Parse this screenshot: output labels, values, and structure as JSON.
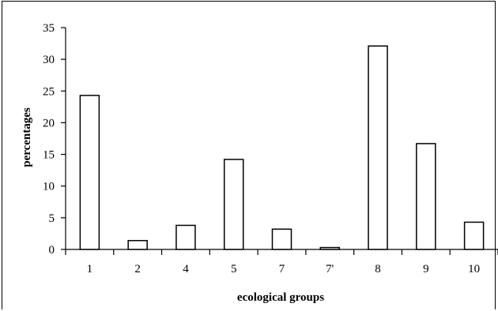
{
  "chart_data": {
    "type": "bar",
    "categories": [
      "1",
      "2",
      "4",
      "5",
      "7",
      "7'",
      "8",
      "9",
      "10"
    ],
    "values": [
      24.3,
      1.4,
      3.8,
      14.2,
      3.2,
      0.3,
      32.1,
      16.7,
      4.3
    ],
    "xlabel": "ecological groups",
    "ylabel": "percentages",
    "ylim": [
      0,
      35
    ],
    "yticks": [
      0,
      5,
      10,
      15,
      20,
      25,
      30,
      35
    ],
    "grid": false,
    "legend": "none",
    "bar_fill": "#ffffff",
    "bar_stroke": "#000000"
  }
}
